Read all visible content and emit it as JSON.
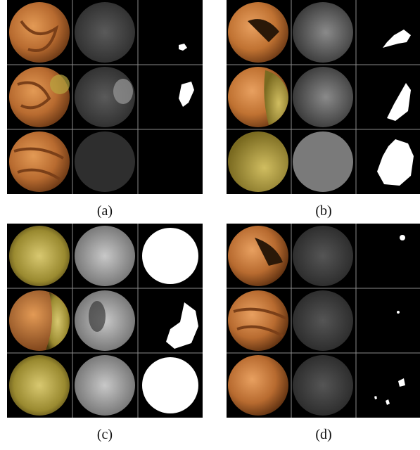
{
  "figure": {
    "panels": [
      {
        "id": "a",
        "caption": "(a)",
        "mask_level": "small"
      },
      {
        "id": "b",
        "caption": "(b)",
        "mask_level": "medium"
      },
      {
        "id": "c",
        "caption": "(c)",
        "mask_level": "large"
      },
      {
        "id": "d",
        "caption": "(d)",
        "mask_level": "sparse"
      }
    ],
    "columns": [
      "endoscopic-frame",
      "grayscale-map",
      "binary-mask"
    ],
    "colors": {
      "background": "#000000",
      "divider": "#8a8a8a",
      "tissue": "#c77b3e",
      "bubbles": "#b8a640",
      "map": "#6a6a6a",
      "mask": "#ffffff"
    }
  }
}
